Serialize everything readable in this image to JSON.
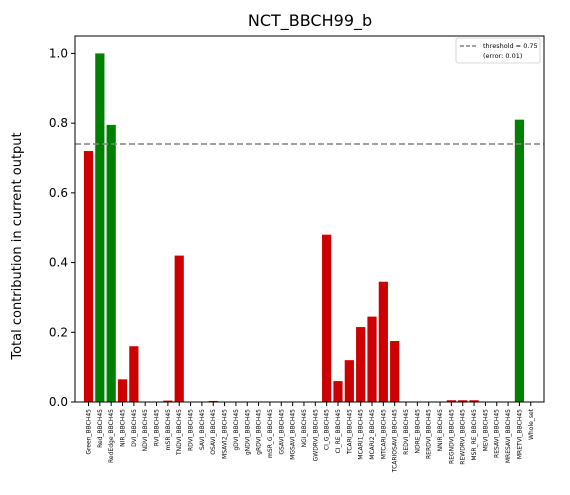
{
  "chart_data": {
    "type": "bar",
    "title": "NCT_BBCH99_b",
    "xlabel": "",
    "ylabel": "Total contribution in current output",
    "ylim": [
      0,
      1.05
    ],
    "yticks": [
      "0.0",
      "0.2",
      "0.4",
      "0.6",
      "0.8",
      "1.0"
    ],
    "grid": false,
    "legend_position": "top-right",
    "threshold": {
      "value": 0.74,
      "label_line1": "threshold = 0.75",
      "label_line2": "(error: 0.01)",
      "color": "#808080"
    },
    "colors": {
      "below": "#cc0000",
      "above": "#008000"
    },
    "categories": [
      "Green_BBCH45",
      "Red_BBCH45",
      "RedEdge_BBCH45",
      "NIR_BBCH45",
      "DVI_BBCH45",
      "NDVI_BBCH45",
      "RVI_BBCH45",
      "mSR_BBCH45",
      "TNDVI_BBCH45",
      "RDVI_BBCH45",
      "SAVI_BBCH45",
      "OSAVI_BBCH45",
      "MSAVI2_BBCH45",
      "gDVI_BBCH45",
      "gNDVI_BBCH45",
      "gRDVI_BBCH45",
      "mSR_G_BBCH45",
      "GSAVI_BBCH45",
      "MGSAVI_BBCH45",
      "NGI_BBCH45",
      "GWDRVI_BBCH45",
      "CI_G_BBCH45",
      "CI_RE_BBCH45",
      "TCARI_BBCH45",
      "MCARI1_BBCH45",
      "MCARI2_BBCH45",
      "MTCARI_BBCH45",
      "TCARIOSAVI_BBCH45",
      "REDVI_BBCH45",
      "NDRE_BBCH45",
      "RERDVI_BBCH45",
      "NNIR_BBCH45",
      "REGNDVI_BBCH45",
      "REWDRVI_BBCH45",
      "MSR_RE_BBCH45",
      "MEVI_BBCH45",
      "RESAVI_BBCH45",
      "MRESAVI_BBCH45",
      "MRETVI_BBCH45",
      "Whole_set"
    ],
    "values": [
      0.72,
      1.0,
      0.795,
      0.065,
      0.16,
      0.0,
      0.0,
      0.004,
      0.42,
      0.0,
      0.0,
      0.003,
      0.0,
      0.0,
      0.0,
      0.0,
      0.0,
      0.0,
      0.0,
      0.0,
      0.0,
      0.48,
      0.06,
      0.12,
      0.215,
      0.245,
      0.345,
      0.175,
      0.0,
      0.0,
      0.0,
      0.0,
      0.005,
      0.005,
      0.005,
      0.0,
      0.0,
      0.0,
      0.81,
      0.0
    ],
    "bar_colors": [
      "#cc0000",
      "#008000",
      "#008000",
      "#cc0000",
      "#cc0000",
      "#cc0000",
      "#cc0000",
      "#cc0000",
      "#cc0000",
      "#cc0000",
      "#cc0000",
      "#cc0000",
      "#cc0000",
      "#cc0000",
      "#cc0000",
      "#cc0000",
      "#cc0000",
      "#cc0000",
      "#cc0000",
      "#cc0000",
      "#cc0000",
      "#cc0000",
      "#cc0000",
      "#cc0000",
      "#cc0000",
      "#cc0000",
      "#cc0000",
      "#cc0000",
      "#cc0000",
      "#cc0000",
      "#cc0000",
      "#cc0000",
      "#cc0000",
      "#cc0000",
      "#cc0000",
      "#cc0000",
      "#cc0000",
      "#cc0000",
      "#008000",
      "#cc0000"
    ]
  }
}
